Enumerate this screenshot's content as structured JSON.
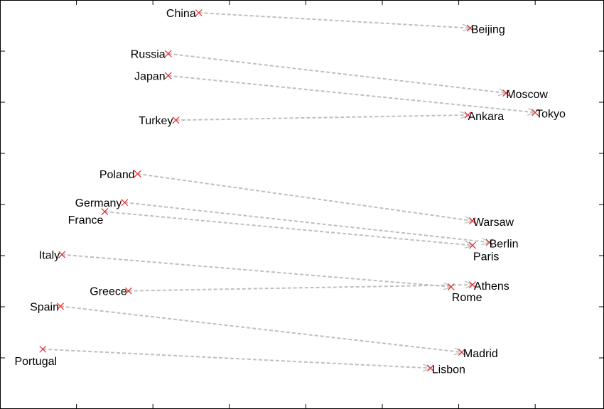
{
  "chart_data": {
    "type": "scatter",
    "title": "",
    "xlabel": "",
    "ylabel": "",
    "grid": false,
    "legend": "none",
    "tick_labels_shown": false,
    "colors": {
      "point": "#e8262b",
      "arrow": "#bfbfbf",
      "frame": "#000000"
    },
    "x_range": [
      0,
      7.9
    ],
    "y_range": [
      0,
      8
    ],
    "pairs": [
      {
        "country": {
          "name": "China",
          "x": 2.6,
          "y": 7.75
        },
        "capital": {
          "name": "Beijing",
          "x": 6.15,
          "y": 7.45
        }
      },
      {
        "country": {
          "name": "Russia",
          "x": 2.2,
          "y": 6.95
        },
        "capital": {
          "name": "Moscow",
          "x": 6.62,
          "y": 6.18
        }
      },
      {
        "country": {
          "name": "Japan",
          "x": 2.2,
          "y": 6.52
        },
        "capital": {
          "name": "Tokyo",
          "x": 7.0,
          "y": 5.8
        }
      },
      {
        "country": {
          "name": "Turkey",
          "x": 2.3,
          "y": 5.65
        },
        "capital": {
          "name": "Ankara",
          "x": 6.12,
          "y": 5.75
        }
      },
      {
        "country": {
          "name": "Poland",
          "x": 1.8,
          "y": 4.6
        },
        "capital": {
          "name": "Warsaw",
          "x": 6.18,
          "y": 3.68
        }
      },
      {
        "country": {
          "name": "Germany",
          "x": 1.63,
          "y": 4.04
        },
        "capital": {
          "name": "Berlin",
          "x": 6.4,
          "y": 3.26
        }
      },
      {
        "country": {
          "name": "France",
          "x": 1.37,
          "y": 3.86
        },
        "capital": {
          "name": "Paris",
          "x": 6.18,
          "y": 3.2
        }
      },
      {
        "country": {
          "name": "Italy",
          "x": 0.81,
          "y": 3.02
        },
        "capital": {
          "name": "Rome",
          "x": 5.9,
          "y": 2.39
        }
      },
      {
        "country": {
          "name": "Greece",
          "x": 1.68,
          "y": 2.31
        },
        "capital": {
          "name": "Athens",
          "x": 6.18,
          "y": 2.43
        }
      },
      {
        "country": {
          "name": "Spain",
          "x": 0.79,
          "y": 2.01
        },
        "capital": {
          "name": "Madrid",
          "x": 6.04,
          "y": 1.11
        }
      },
      {
        "country": {
          "name": "Portugal",
          "x": 0.56,
          "y": 1.17
        },
        "capital": {
          "name": "Lisbon",
          "x": 5.63,
          "y": 0.8
        }
      }
    ]
  }
}
